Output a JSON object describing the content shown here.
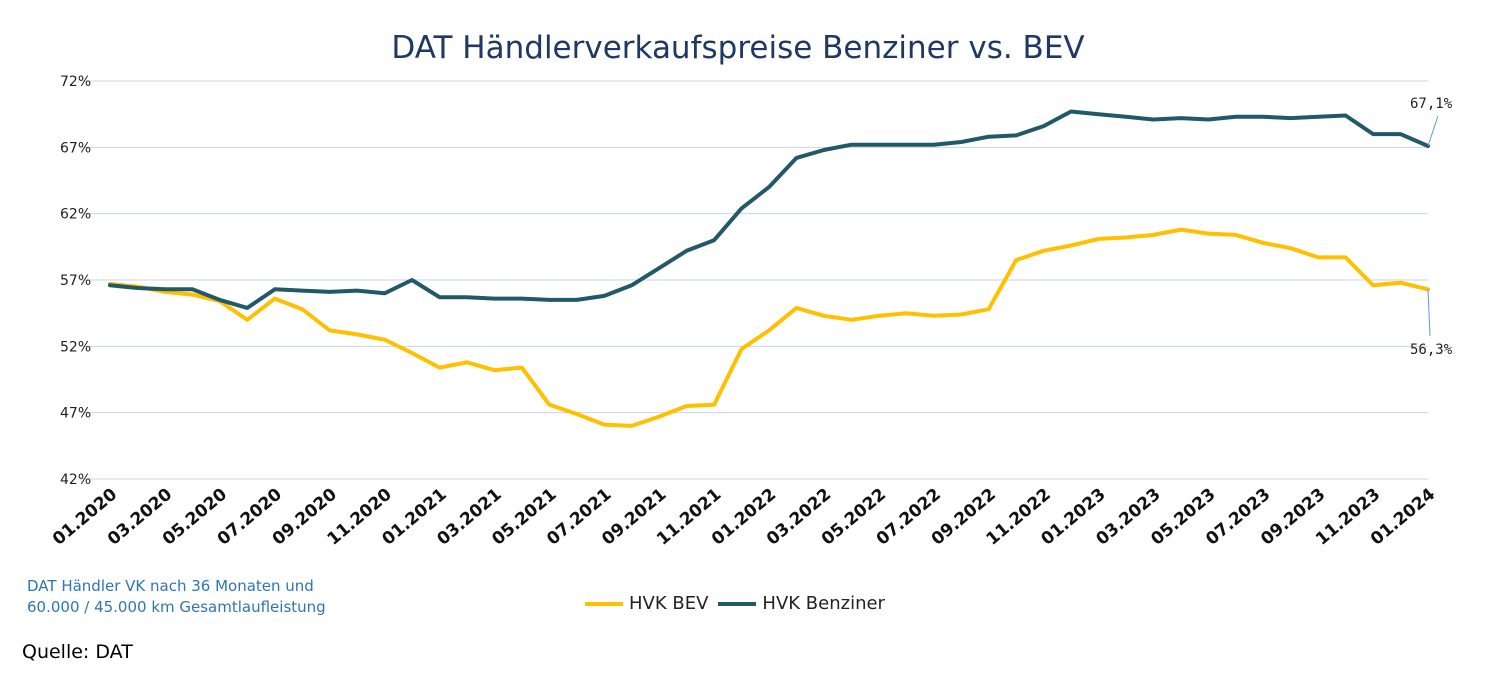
{
  "chart_data": {
    "type": "line",
    "title": "DAT Händlerverkaufspreise Benziner vs. BEV",
    "xlabel": "",
    "ylabel": "",
    "ylim": [
      42,
      72
    ],
    "y_ticks": [
      "42%",
      "47%",
      "52%",
      "57%",
      "62%",
      "67%",
      "72%"
    ],
    "y_tick_values": [
      42,
      47,
      52,
      57,
      62,
      67,
      72
    ],
    "x_tick_labels": [
      "01.2020",
      "03.2020",
      "05.2020",
      "07.2020",
      "09.2020",
      "11.2020",
      "01.2021",
      "03.2021",
      "05.2021",
      "07.2021",
      "09.2021",
      "11.2021",
      "01.2022",
      "03.2022",
      "05.2022",
      "07.2022",
      "09.2022",
      "11.2022",
      "01.2023",
      "03.2023",
      "05.2023",
      "07.2023",
      "09.2023",
      "11.2023",
      "01.2024"
    ],
    "grid": true,
    "legend_position": "bottom",
    "series": [
      {
        "name": "HVK BEV",
        "color": "#ffc000",
        "values": [
          56.7,
          56.5,
          56.1,
          55.9,
          55.4,
          54.0,
          55.6,
          54.8,
          53.2,
          52.9,
          52.5,
          51.5,
          50.4,
          50.8,
          50.2,
          50.4,
          47.6,
          46.9,
          46.1,
          46.0,
          46.7,
          47.5,
          47.6,
          51.8,
          53.2,
          54.9,
          54.3,
          54.0,
          54.3,
          54.5,
          54.3,
          54.4,
          54.8,
          58.5,
          59.2,
          59.6,
          60.1,
          60.2,
          60.4,
          60.8,
          60.5,
          60.4,
          59.8,
          59.4,
          58.7,
          58.7,
          56.6,
          56.8,
          56.3
        ]
      },
      {
        "name": "HVK Benziner",
        "color": "#215968",
        "values": [
          56.6,
          56.4,
          56.3,
          56.3,
          55.5,
          54.9,
          56.3,
          56.2,
          56.1,
          56.2,
          56.0,
          57.0,
          55.7,
          55.7,
          55.6,
          55.6,
          55.5,
          55.5,
          55.8,
          56.6,
          57.9,
          59.2,
          60.0,
          62.4,
          64.0,
          66.2,
          66.8,
          67.2,
          67.2,
          67.2,
          67.2,
          67.4,
          67.8,
          67.9,
          68.6,
          69.7,
          69.5,
          69.3,
          69.1,
          69.2,
          69.1,
          69.3,
          69.3,
          69.2,
          69.3,
          69.4,
          68.0,
          68.0,
          67.1
        ]
      }
    ],
    "end_labels": [
      "67,1%",
      "56,3%"
    ]
  },
  "note": {
    "line1": "DAT Händler VK nach 36 Monaten und",
    "line2": "60.000 / 45.000 km Gesamtlaufleistung"
  },
  "source": "Quelle: DAT"
}
